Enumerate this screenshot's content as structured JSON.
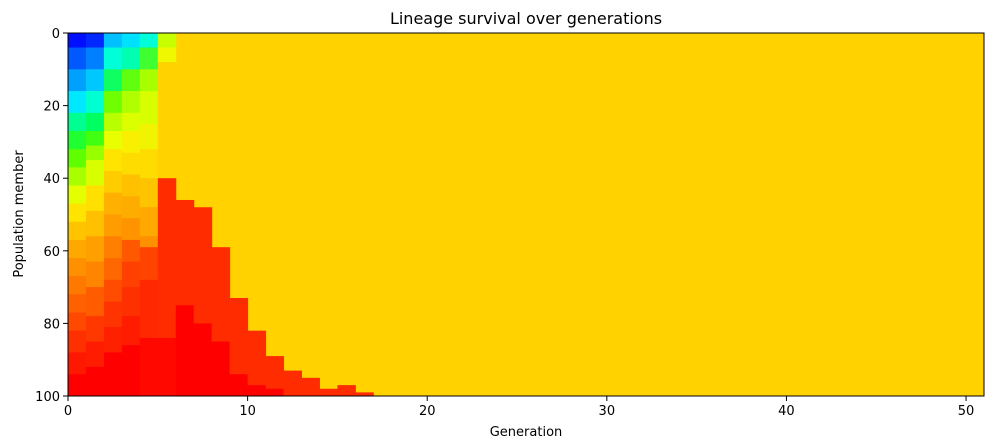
{
  "chart_data": {
    "type": "heatmap",
    "title": "Lineage survival over generations",
    "xlabel": "Generation",
    "ylabel": "Population member",
    "xlim": [
      0,
      51
    ],
    "ylim": [
      100,
      0
    ],
    "xticks": [
      "0",
      "10",
      "20",
      "30",
      "40",
      "50"
    ],
    "yticks": [
      "0",
      "20",
      "40",
      "60",
      "80",
      "100"
    ],
    "grid": false,
    "legend": "none",
    "fill_color": "#ffd200",
    "cells": [
      {
        "x": [
          0,
          1
        ],
        "y": [
          0,
          4
        ],
        "color": "#0010ff"
      },
      {
        "x": [
          0,
          1
        ],
        "y": [
          4,
          10
        ],
        "color": "#0058ff"
      },
      {
        "x": [
          0,
          1
        ],
        "y": [
          10,
          16
        ],
        "color": "#00a0ff"
      },
      {
        "x": [
          0,
          1
        ],
        "y": [
          16,
          22
        ],
        "color": "#00e8ff"
      },
      {
        "x": [
          0,
          1
        ],
        "y": [
          22,
          27
        ],
        "color": "#00ff90"
      },
      {
        "x": [
          0,
          1
        ],
        "y": [
          27,
          32
        ],
        "color": "#20ff30"
      },
      {
        "x": [
          0,
          1
        ],
        "y": [
          32,
          37
        ],
        "color": "#60ff00"
      },
      {
        "x": [
          0,
          1
        ],
        "y": [
          37,
          42
        ],
        "color": "#a8ff00"
      },
      {
        "x": [
          0,
          1
        ],
        "y": [
          42,
          47
        ],
        "color": "#e4ff00"
      },
      {
        "x": [
          0,
          1
        ],
        "y": [
          47,
          52
        ],
        "color": "#ffe400"
      },
      {
        "x": [
          0,
          1
        ],
        "y": [
          52,
          57
        ],
        "color": "#ffc400"
      },
      {
        "x": [
          0,
          1
        ],
        "y": [
          57,
          62
        ],
        "color": "#ffa800"
      },
      {
        "x": [
          0,
          1
        ],
        "y": [
          62,
          67
        ],
        "color": "#ff9000"
      },
      {
        "x": [
          0,
          1
        ],
        "y": [
          67,
          72
        ],
        "color": "#ff7800"
      },
      {
        "x": [
          0,
          1
        ],
        "y": [
          72,
          77
        ],
        "color": "#ff6000"
      },
      {
        "x": [
          0,
          1
        ],
        "y": [
          77,
          82
        ],
        "color": "#ff4800"
      },
      {
        "x": [
          0,
          1
        ],
        "y": [
          82,
          88
        ],
        "color": "#ff3000"
      },
      {
        "x": [
          0,
          1
        ],
        "y": [
          88,
          94
        ],
        "color": "#ff1800"
      },
      {
        "x": [
          0,
          1
        ],
        "y": [
          94,
          100
        ],
        "color": "#ff0000"
      },
      {
        "x": [
          1,
          2
        ],
        "y": [
          0,
          4
        ],
        "color": "#0028ff"
      },
      {
        "x": [
          1,
          2
        ],
        "y": [
          4,
          10
        ],
        "color": "#0080ff"
      },
      {
        "x": [
          1,
          2
        ],
        "y": [
          10,
          16
        ],
        "color": "#00c8ff"
      },
      {
        "x": [
          1,
          2
        ],
        "y": [
          16,
          22
        ],
        "color": "#00ffd0"
      },
      {
        "x": [
          1,
          2
        ],
        "y": [
          22,
          27
        ],
        "color": "#00ff60"
      },
      {
        "x": [
          1,
          2
        ],
        "y": [
          27,
          31
        ],
        "color": "#40ff10"
      },
      {
        "x": [
          1,
          2
        ],
        "y": [
          31,
          35
        ],
        "color": "#98ff00"
      },
      {
        "x": [
          1,
          2
        ],
        "y": [
          35,
          42
        ],
        "color": "#d8ff00"
      },
      {
        "x": [
          1,
          2
        ],
        "y": [
          42,
          49
        ],
        "color": "#ffe000"
      },
      {
        "x": [
          1,
          2
        ],
        "y": [
          49,
          56
        ],
        "color": "#ffc000"
      },
      {
        "x": [
          1,
          2
        ],
        "y": [
          56,
          63
        ],
        "color": "#ffa000"
      },
      {
        "x": [
          1,
          2
        ],
        "y": [
          63,
          70
        ],
        "color": "#ff8400"
      },
      {
        "x": [
          1,
          2
        ],
        "y": [
          70,
          78
        ],
        "color": "#ff5c00"
      },
      {
        "x": [
          1,
          2
        ],
        "y": [
          78,
          85
        ],
        "color": "#ff3800"
      },
      {
        "x": [
          1,
          2
        ],
        "y": [
          85,
          92
        ],
        "color": "#ff1c00"
      },
      {
        "x": [
          1,
          2
        ],
        "y": [
          92,
          100
        ],
        "color": "#ff0000"
      },
      {
        "x": [
          2,
          3
        ],
        "y": [
          0,
          4
        ],
        "color": "#00c0ff"
      },
      {
        "x": [
          2,
          3
        ],
        "y": [
          4,
          10
        ],
        "color": "#00ffd8"
      },
      {
        "x": [
          2,
          3
        ],
        "y": [
          10,
          16
        ],
        "color": "#10ff60"
      },
      {
        "x": [
          2,
          3
        ],
        "y": [
          16,
          22
        ],
        "color": "#70ff00"
      },
      {
        "x": [
          2,
          3
        ],
        "y": [
          22,
          27
        ],
        "color": "#b8ff00"
      },
      {
        "x": [
          2,
          3
        ],
        "y": [
          27,
          32
        ],
        "color": "#e8ff00"
      },
      {
        "x": [
          2,
          3
        ],
        "y": [
          32,
          38
        ],
        "color": "#ffe400"
      },
      {
        "x": [
          2,
          3
        ],
        "y": [
          38,
          44
        ],
        "color": "#ffcc00"
      },
      {
        "x": [
          2,
          3
        ],
        "y": [
          44,
          50
        ],
        "color": "#ffb000"
      },
      {
        "x": [
          2,
          3
        ],
        "y": [
          50,
          56
        ],
        "color": "#ff9c00"
      },
      {
        "x": [
          2,
          3
        ],
        "y": [
          56,
          62
        ],
        "color": "#ff8000"
      },
      {
        "x": [
          2,
          3
        ],
        "y": [
          62,
          68
        ],
        "color": "#ff6800"
      },
      {
        "x": [
          2,
          3
        ],
        "y": [
          68,
          74
        ],
        "color": "#ff4c00"
      },
      {
        "x": [
          2,
          3
        ],
        "y": [
          74,
          81
        ],
        "color": "#ff3400"
      },
      {
        "x": [
          2,
          3
        ],
        "y": [
          81,
          88
        ],
        "color": "#ff2000"
      },
      {
        "x": [
          2,
          3
        ],
        "y": [
          88,
          100
        ],
        "color": "#ff0000"
      },
      {
        "x": [
          3,
          4
        ],
        "y": [
          0,
          4
        ],
        "color": "#00e0ff"
      },
      {
        "x": [
          3,
          4
        ],
        "y": [
          4,
          10
        ],
        "color": "#00ffb0"
      },
      {
        "x": [
          3,
          4
        ],
        "y": [
          10,
          16
        ],
        "color": "#60ff10"
      },
      {
        "x": [
          3,
          4
        ],
        "y": [
          16,
          22
        ],
        "color": "#b0ff00"
      },
      {
        "x": [
          3,
          4
        ],
        "y": [
          22,
          27
        ],
        "color": "#dcff00"
      },
      {
        "x": [
          3,
          4
        ],
        "y": [
          27,
          33
        ],
        "color": "#f8f000"
      },
      {
        "x": [
          3,
          4
        ],
        "y": [
          33,
          39
        ],
        "color": "#ffdc00"
      },
      {
        "x": [
          3,
          4
        ],
        "y": [
          39,
          45
        ],
        "color": "#ffc000"
      },
      {
        "x": [
          3,
          4
        ],
        "y": [
          45,
          51
        ],
        "color": "#ffac00"
      },
      {
        "x": [
          3,
          4
        ],
        "y": [
          51,
          57
        ],
        "color": "#ff9400"
      },
      {
        "x": [
          3,
          4
        ],
        "y": [
          57,
          63
        ],
        "color": "#ff5800"
      },
      {
        "x": [
          3,
          4
        ],
        "y": [
          63,
          70
        ],
        "color": "#ff4000"
      },
      {
        "x": [
          3,
          4
        ],
        "y": [
          70,
          78
        ],
        "color": "#ff3000"
      },
      {
        "x": [
          3,
          4
        ],
        "y": [
          78,
          86
        ],
        "color": "#ff1c00"
      },
      {
        "x": [
          3,
          4
        ],
        "y": [
          86,
          100
        ],
        "color": "#ff0000"
      },
      {
        "x": [
          4,
          5
        ],
        "y": [
          0,
          4
        ],
        "color": "#00ffd8"
      },
      {
        "x": [
          4,
          5
        ],
        "y": [
          4,
          10
        ],
        "color": "#40ff30"
      },
      {
        "x": [
          4,
          5
        ],
        "y": [
          10,
          16
        ],
        "color": "#a8ff00"
      },
      {
        "x": [
          4,
          5
        ],
        "y": [
          16,
          25
        ],
        "color": "#d8ff00"
      },
      {
        "x": [
          4,
          5
        ],
        "y": [
          25,
          32
        ],
        "color": "#f0f400"
      },
      {
        "x": [
          4,
          5
        ],
        "y": [
          32,
          40
        ],
        "color": "#ffdc00"
      },
      {
        "x": [
          4,
          5
        ],
        "y": [
          40,
          48
        ],
        "color": "#ffc400"
      },
      {
        "x": [
          4,
          5
        ],
        "y": [
          48,
          56
        ],
        "color": "#ffa800"
      },
      {
        "x": [
          4,
          5
        ],
        "y": [
          56,
          59
        ],
        "color": "#ff9000"
      },
      {
        "x": [
          4,
          5
        ],
        "y": [
          59,
          68
        ],
        "color": "#ff4400"
      },
      {
        "x": [
          4,
          5
        ],
        "y": [
          68,
          84
        ],
        "color": "#ff2800"
      },
      {
        "x": [
          4,
          5
        ],
        "y": [
          84,
          100
        ],
        "color": "#ff0800"
      },
      {
        "x": [
          5,
          6
        ],
        "y": [
          0,
          4
        ],
        "color": "#c8ff00"
      },
      {
        "x": [
          5,
          6
        ],
        "y": [
          4,
          8
        ],
        "color": "#f0f800"
      },
      {
        "x": [
          5,
          6
        ],
        "y": [
          8,
          40
        ],
        "color": "#ffd200"
      },
      {
        "x": [
          5,
          6
        ],
        "y": [
          40,
          84
        ],
        "color": "#ff2c00"
      },
      {
        "x": [
          5,
          6
        ],
        "y": [
          84,
          100
        ],
        "color": "#ff0800"
      },
      {
        "x": [
          6,
          7
        ],
        "y": [
          46,
          75
        ],
        "color": "#ff2c00"
      },
      {
        "x": [
          6,
          7
        ],
        "y": [
          75,
          100
        ],
        "color": "#ff0000"
      },
      {
        "x": [
          7,
          8
        ],
        "y": [
          48,
          80
        ],
        "color": "#ff2c00"
      },
      {
        "x": [
          7,
          8
        ],
        "y": [
          80,
          100
        ],
        "color": "#ff0000"
      },
      {
        "x": [
          8,
          9
        ],
        "y": [
          59,
          85
        ],
        "color": "#ff2c00"
      },
      {
        "x": [
          8,
          9
        ],
        "y": [
          85,
          100
        ],
        "color": "#ff0000"
      },
      {
        "x": [
          9,
          10
        ],
        "y": [
          73,
          94
        ],
        "color": "#ff2c00"
      },
      {
        "x": [
          9,
          10
        ],
        "y": [
          94,
          100
        ],
        "color": "#ff0000"
      },
      {
        "x": [
          10,
          11
        ],
        "y": [
          82,
          97
        ],
        "color": "#ff2c00"
      },
      {
        "x": [
          10,
          11
        ],
        "y": [
          97,
          100
        ],
        "color": "#ff0000"
      },
      {
        "x": [
          11,
          12
        ],
        "y": [
          89,
          98
        ],
        "color": "#ff2c00"
      },
      {
        "x": [
          11,
          12
        ],
        "y": [
          98,
          100
        ],
        "color": "#ff0000"
      },
      {
        "x": [
          12,
          13
        ],
        "y": [
          93,
          100
        ],
        "color": "#ff2c00"
      },
      {
        "x": [
          13,
          14
        ],
        "y": [
          95,
          100
        ],
        "color": "#ff2c00"
      },
      {
        "x": [
          14,
          15
        ],
        "y": [
          98,
          100
        ],
        "color": "#ff2c00"
      },
      {
        "x": [
          15,
          16
        ],
        "y": [
          97,
          100
        ],
        "color": "#ff2c00"
      },
      {
        "x": [
          16,
          17
        ],
        "y": [
          99,
          100
        ],
        "color": "#ff2c00"
      }
    ]
  }
}
